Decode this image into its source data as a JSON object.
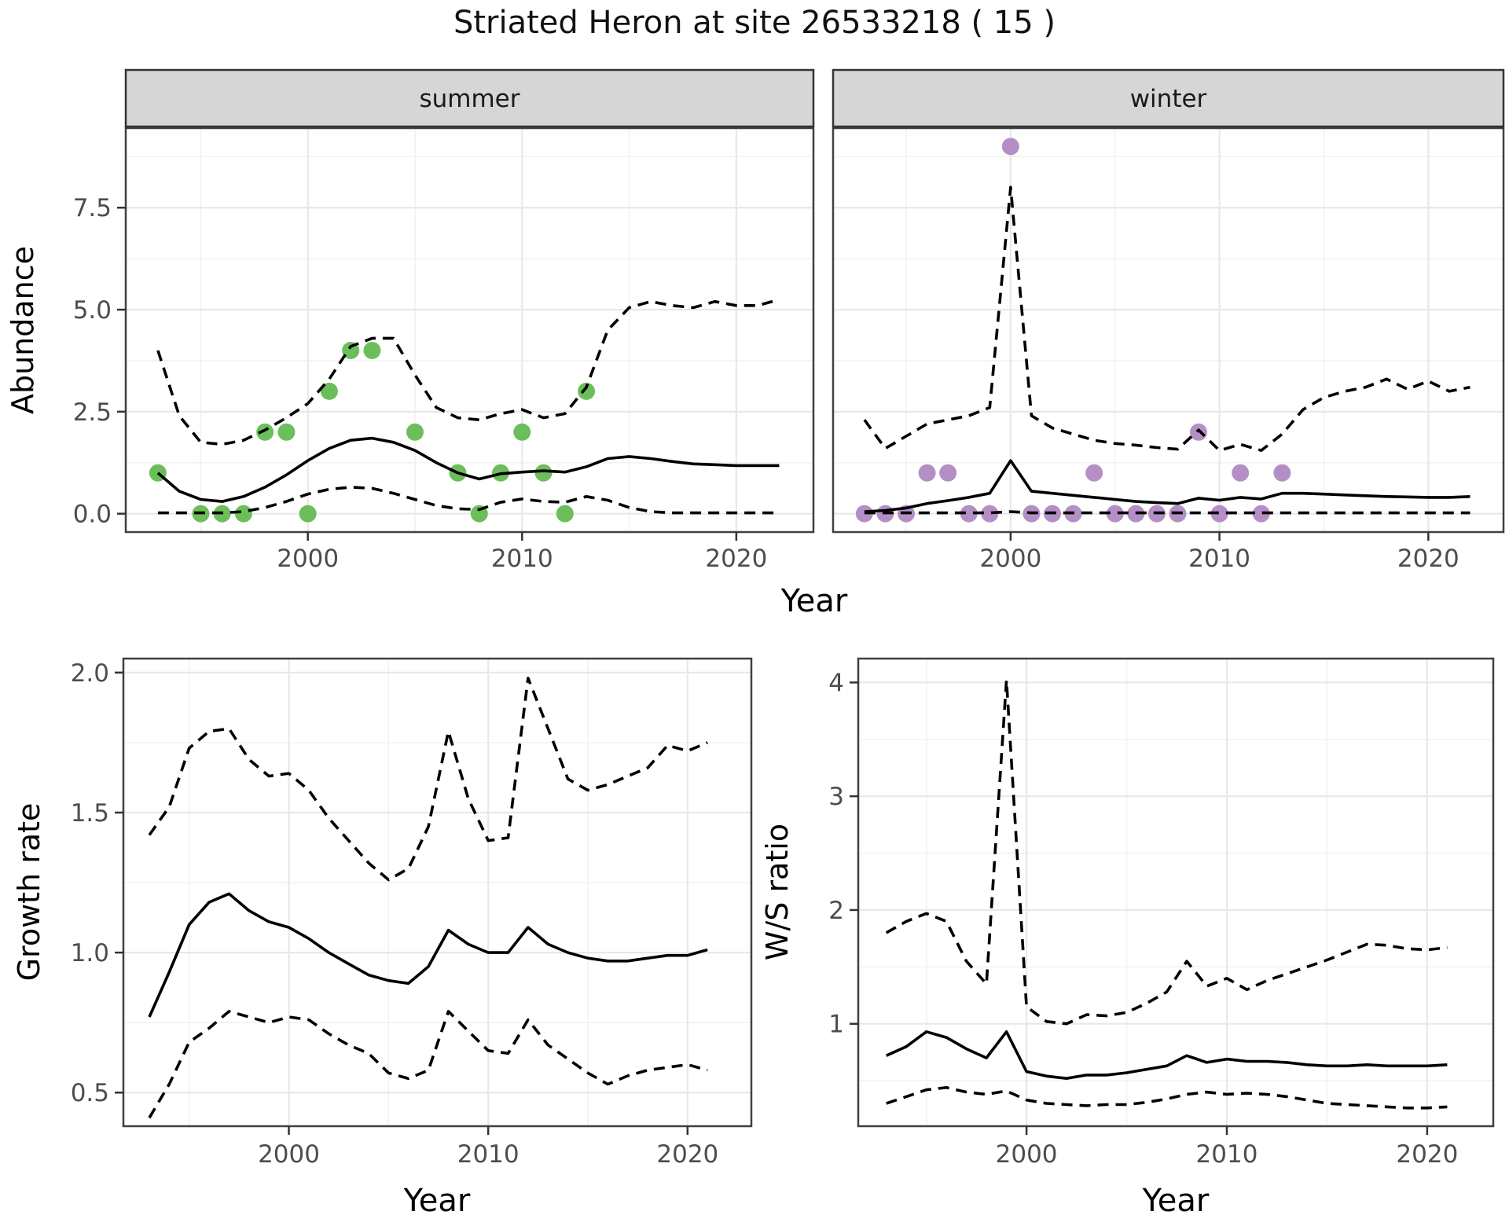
{
  "title": "Striated Heron at site 26533218 ( 15 )",
  "colors": {
    "summer_point": "#6cbe5b",
    "winter_point": "#b48fc6",
    "line": "#000000",
    "grid_major": "#e8e8e8",
    "grid_minor": "#f2f2f2",
    "strip_fill": "#d6d6d6",
    "strip_border": "#333333",
    "panel_border": "#404040",
    "tick_mark": "#333333",
    "tick_text": "#4d4d4d",
    "title_text": "#111111"
  },
  "top_row_xlabel": "Year",
  "chart_data": [
    {
      "id": "abundance_summer",
      "type": "line",
      "facet_label": "summer",
      "ylabel": "Abundance",
      "xlabel": "",
      "xlim": [
        1991.5,
        2023.6
      ],
      "ylim": [
        -0.45,
        9.45
      ],
      "x_ticks": [
        2000,
        2010,
        2020
      ],
      "x_tick_labels": [
        "2000",
        "2010",
        "2020"
      ],
      "x_minor": [
        1995,
        2005,
        2015
      ],
      "y_ticks": [
        0,
        2.5,
        5,
        7.5
      ],
      "y_tick_labels": [
        "0.0",
        "2.5",
        "5.0",
        "7.5"
      ],
      "y_minor": [
        1.25,
        3.75,
        6.25,
        8.75
      ],
      "series": [
        {
          "name": "mean",
          "style": "solid",
          "x": [
            1993,
            1994,
            1995,
            1996,
            1997,
            1998,
            1999,
            2000,
            2001,
            2002,
            2003,
            2004,
            2005,
            2006,
            2007,
            2008,
            2009,
            2010,
            2011,
            2012,
            2013,
            2014,
            2015,
            2016,
            2017,
            2018,
            2019,
            2020,
            2021,
            2022
          ],
          "y": [
            1.0,
            0.55,
            0.35,
            0.3,
            0.42,
            0.65,
            0.95,
            1.3,
            1.6,
            1.8,
            1.85,
            1.75,
            1.55,
            1.25,
            1.0,
            0.85,
            0.98,
            1.02,
            1.05,
            1.02,
            1.15,
            1.35,
            1.4,
            1.35,
            1.28,
            1.22,
            1.2,
            1.18,
            1.18,
            1.18
          ]
        },
        {
          "name": "upper95",
          "style": "dashed",
          "x": [
            1993,
            1994,
            1995,
            1996,
            1997,
            1998,
            1999,
            2000,
            2001,
            2002,
            2003,
            2004,
            2005,
            2006,
            2007,
            2008,
            2009,
            2010,
            2011,
            2012,
            2013,
            2014,
            2015,
            2016,
            2017,
            2018,
            2019,
            2020,
            2021,
            2022
          ],
          "y": [
            4.0,
            2.4,
            1.75,
            1.7,
            1.8,
            2.05,
            2.35,
            2.7,
            3.3,
            4.1,
            4.3,
            4.3,
            3.4,
            2.6,
            2.35,
            2.3,
            2.45,
            2.55,
            2.35,
            2.45,
            3.1,
            4.5,
            5.05,
            5.2,
            5.1,
            5.05,
            5.2,
            5.1,
            5.1,
            5.25
          ]
        },
        {
          "name": "lower95",
          "style": "dashed",
          "x": [
            1993,
            1994,
            1995,
            1996,
            1997,
            1998,
            1999,
            2000,
            2001,
            2002,
            2003,
            2004,
            2005,
            2006,
            2007,
            2008,
            2009,
            2010,
            2011,
            2012,
            2013,
            2014,
            2015,
            2016,
            2017,
            2018,
            2019,
            2020,
            2021,
            2022
          ],
          "y": [
            0.02,
            0.02,
            0.02,
            0.02,
            0.05,
            0.15,
            0.3,
            0.48,
            0.6,
            0.65,
            0.62,
            0.5,
            0.35,
            0.2,
            0.12,
            0.1,
            0.28,
            0.36,
            0.3,
            0.28,
            0.42,
            0.33,
            0.15,
            0.05,
            0.02,
            0.02,
            0.02,
            0.02,
            0.02,
            0.02
          ]
        }
      ],
      "points": {
        "name": "observed-counts",
        "color_key": "summer_point",
        "x": [
          1993,
          1995,
          1996,
          1997,
          1998,
          1999,
          2000,
          2001,
          2002,
          2003,
          2005,
          2007,
          2008,
          2009,
          2010,
          2011,
          2012,
          2013
        ],
        "y": [
          1,
          0,
          0,
          0,
          2,
          2,
          0,
          3,
          4,
          4,
          2,
          1,
          0,
          1,
          2,
          1,
          0,
          3
        ]
      }
    },
    {
      "id": "abundance_winter",
      "type": "line",
      "facet_label": "winter",
      "ylabel": "",
      "xlabel": "",
      "xlim": [
        1991.5,
        2023.6
      ],
      "ylim": [
        -0.45,
        9.45
      ],
      "x_ticks": [
        2000,
        2010,
        2020
      ],
      "x_tick_labels": [
        "2000",
        "2010",
        "2020"
      ],
      "x_minor": [
        1995,
        2005,
        2015
      ],
      "y_ticks": [
        0,
        2.5,
        5,
        7.5
      ],
      "y_tick_labels": [],
      "y_minor": [
        1.25,
        3.75,
        6.25,
        8.75
      ],
      "series": [
        {
          "name": "mean",
          "style": "solid",
          "x": [
            1993,
            1994,
            1995,
            1996,
            1997,
            1998,
            1999,
            2000,
            2001,
            2002,
            2003,
            2004,
            2005,
            2006,
            2007,
            2008,
            2009,
            2010,
            2011,
            2012,
            2013,
            2014,
            2015,
            2016,
            2017,
            2018,
            2019,
            2020,
            2021,
            2022
          ],
          "y": [
            0.05,
            0.08,
            0.14,
            0.25,
            0.32,
            0.4,
            0.5,
            1.3,
            0.55,
            0.5,
            0.45,
            0.4,
            0.35,
            0.3,
            0.27,
            0.25,
            0.38,
            0.33,
            0.4,
            0.36,
            0.5,
            0.5,
            0.48,
            0.46,
            0.44,
            0.42,
            0.41,
            0.4,
            0.4,
            0.42
          ]
        },
        {
          "name": "upper95",
          "style": "dashed",
          "x": [
            1993,
            1994,
            1995,
            1996,
            1997,
            1998,
            1999,
            2000,
            2001,
            2002,
            2003,
            2004,
            2005,
            2006,
            2007,
            2008,
            2009,
            2010,
            2011,
            2012,
            2013,
            2014,
            2015,
            2016,
            2017,
            2018,
            2019,
            2020,
            2021,
            2022
          ],
          "y": [
            2.3,
            1.6,
            1.9,
            2.2,
            2.3,
            2.4,
            2.6,
            8.0,
            2.4,
            2.1,
            1.95,
            1.8,
            1.72,
            1.68,
            1.62,
            1.58,
            2.05,
            1.55,
            1.7,
            1.55,
            1.95,
            2.55,
            2.85,
            3.0,
            3.1,
            3.3,
            3.05,
            3.25,
            3.0,
            3.1
          ]
        },
        {
          "name": "lower95",
          "style": "dashed",
          "x": [
            1993,
            1994,
            1995,
            1996,
            1997,
            1998,
            1999,
            2000,
            2001,
            2002,
            2003,
            2004,
            2005,
            2006,
            2007,
            2008,
            2009,
            2010,
            2011,
            2012,
            2013,
            2014,
            2015,
            2016,
            2017,
            2018,
            2019,
            2020,
            2021,
            2022
          ],
          "y": [
            0.02,
            0.02,
            0.02,
            0.02,
            0.02,
            0.02,
            0.02,
            0.05,
            0.02,
            0.02,
            0.02,
            0.02,
            0.02,
            0.02,
            0.02,
            0.02,
            0.02,
            0.02,
            0.02,
            0.02,
            0.02,
            0.02,
            0.02,
            0.02,
            0.02,
            0.02,
            0.02,
            0.02,
            0.02,
            0.02
          ]
        }
      ],
      "points": {
        "name": "observed-counts",
        "color_key": "winter_point",
        "x": [
          1993,
          1994,
          1995,
          1996,
          1997,
          1998,
          1999,
          2000,
          2001,
          2002,
          2003,
          2004,
          2005,
          2006,
          2007,
          2008,
          2009,
          2010,
          2011,
          2012,
          2013
        ],
        "y": [
          0,
          0,
          0,
          1,
          1,
          0,
          0,
          9,
          0,
          0,
          0,
          1,
          0,
          0,
          0,
          0,
          2,
          0,
          1,
          0,
          1
        ]
      }
    },
    {
      "id": "growth_rate",
      "type": "line",
      "facet_label": "",
      "ylabel": "Growth rate",
      "xlabel": "Year",
      "xlim": [
        1991.7,
        2023.2
      ],
      "ylim": [
        0.38,
        2.05
      ],
      "x_ticks": [
        2000,
        2010,
        2020
      ],
      "x_tick_labels": [
        "2000",
        "2010",
        "2020"
      ],
      "x_minor": [
        1995,
        2005,
        2015
      ],
      "y_ticks": [
        0.5,
        1.0,
        1.5,
        2.0
      ],
      "y_tick_labels": [
        "0.5",
        "1.0",
        "1.5",
        "2.0"
      ],
      "y_minor": [
        0.75,
        1.25,
        1.75
      ],
      "series": [
        {
          "name": "mean",
          "style": "solid",
          "x": [
            1993,
            1994,
            1995,
            1996,
            1997,
            1998,
            1999,
            2000,
            2001,
            2002,
            2003,
            2004,
            2005,
            2006,
            2007,
            2008,
            2009,
            2010,
            2011,
            2012,
            2013,
            2014,
            2015,
            2016,
            2017,
            2018,
            2019,
            2020,
            2021
          ],
          "y": [
            0.77,
            0.93,
            1.1,
            1.18,
            1.21,
            1.15,
            1.11,
            1.09,
            1.05,
            1.0,
            0.96,
            0.92,
            0.9,
            0.89,
            0.95,
            1.08,
            1.03,
            1.0,
            1.0,
            1.09,
            1.03,
            1.0,
            0.98,
            0.97,
            0.97,
            0.98,
            0.99,
            0.99,
            1.01
          ]
        },
        {
          "name": "upper95",
          "style": "dashed",
          "x": [
            1993,
            1994,
            1995,
            1996,
            1997,
            1998,
            1999,
            2000,
            2001,
            2002,
            2003,
            2004,
            2005,
            2006,
            2007,
            2008,
            2009,
            2010,
            2011,
            2012,
            2013,
            2014,
            2015,
            2016,
            2017,
            2018,
            2019,
            2020,
            2021
          ],
          "y": [
            1.42,
            1.52,
            1.73,
            1.79,
            1.8,
            1.69,
            1.63,
            1.64,
            1.58,
            1.48,
            1.4,
            1.32,
            1.26,
            1.3,
            1.45,
            1.79,
            1.55,
            1.4,
            1.41,
            1.98,
            1.8,
            1.62,
            1.58,
            1.6,
            1.63,
            1.66,
            1.74,
            1.72,
            1.75
          ]
        },
        {
          "name": "lower95",
          "style": "dashed",
          "x": [
            1993,
            1994,
            1995,
            1996,
            1997,
            1998,
            1999,
            2000,
            2001,
            2002,
            2003,
            2004,
            2005,
            2006,
            2007,
            2008,
            2009,
            2010,
            2011,
            2012,
            2013,
            2014,
            2015,
            2016,
            2017,
            2018,
            2019,
            2020,
            2021
          ],
          "y": [
            0.41,
            0.53,
            0.68,
            0.73,
            0.79,
            0.77,
            0.75,
            0.77,
            0.76,
            0.71,
            0.67,
            0.64,
            0.57,
            0.55,
            0.58,
            0.79,
            0.72,
            0.65,
            0.64,
            0.76,
            0.67,
            0.62,
            0.57,
            0.53,
            0.56,
            0.58,
            0.59,
            0.6,
            0.58
          ]
        }
      ],
      "points": null
    },
    {
      "id": "ws_ratio",
      "type": "line",
      "facet_label": "",
      "ylabel": "W/S ratio",
      "xlabel": "Year",
      "xlim": [
        1991.6,
        2023.3
      ],
      "ylim": [
        0.1,
        4.21
      ],
      "x_ticks": [
        2000,
        2010,
        2020
      ],
      "x_tick_labels": [
        "2000",
        "2010",
        "2020"
      ],
      "x_minor": [
        1995,
        2005,
        2015
      ],
      "y_ticks": [
        1,
        2,
        3,
        4
      ],
      "y_tick_labels": [
        "1",
        "2",
        "3",
        "4"
      ],
      "y_minor": [
        0.5,
        1.5,
        2.5,
        3.5
      ],
      "series": [
        {
          "name": "mean",
          "style": "solid",
          "x": [
            1993,
            1994,
            1995,
            1996,
            1997,
            1998,
            1999,
            2000,
            2001,
            2002,
            2003,
            2004,
            2005,
            2006,
            2007,
            2008,
            2009,
            2010,
            2011,
            2012,
            2013,
            2014,
            2015,
            2016,
            2017,
            2018,
            2019,
            2020,
            2021
          ],
          "y": [
            0.72,
            0.8,
            0.93,
            0.88,
            0.78,
            0.7,
            0.93,
            0.58,
            0.54,
            0.52,
            0.55,
            0.55,
            0.57,
            0.6,
            0.63,
            0.72,
            0.66,
            0.69,
            0.67,
            0.67,
            0.66,
            0.64,
            0.63,
            0.63,
            0.64,
            0.63,
            0.63,
            0.63,
            0.64
          ]
        },
        {
          "name": "upper95",
          "style": "dashed",
          "x": [
            1993,
            1994,
            1995,
            1996,
            1997,
            1998,
            1999,
            2000,
            2001,
            2002,
            2003,
            2004,
            2005,
            2006,
            2007,
            2008,
            2009,
            2010,
            2011,
            2012,
            2013,
            2014,
            2015,
            2016,
            2017,
            2018,
            2019,
            2020,
            2021
          ],
          "y": [
            1.8,
            1.9,
            1.97,
            1.9,
            1.55,
            1.35,
            4.02,
            1.15,
            1.02,
            1.0,
            1.08,
            1.07,
            1.1,
            1.18,
            1.28,
            1.55,
            1.33,
            1.4,
            1.3,
            1.38,
            1.44,
            1.5,
            1.56,
            1.63,
            1.7,
            1.69,
            1.66,
            1.65,
            1.67
          ]
        },
        {
          "name": "lower95",
          "style": "dashed",
          "x": [
            1993,
            1994,
            1995,
            1996,
            1997,
            1998,
            1999,
            2000,
            2001,
            2002,
            2003,
            2004,
            2005,
            2006,
            2007,
            2008,
            2009,
            2010,
            2011,
            2012,
            2013,
            2014,
            2015,
            2016,
            2017,
            2018,
            2019,
            2020,
            2021
          ],
          "y": [
            0.3,
            0.36,
            0.42,
            0.44,
            0.4,
            0.38,
            0.41,
            0.33,
            0.3,
            0.29,
            0.28,
            0.29,
            0.29,
            0.31,
            0.34,
            0.38,
            0.4,
            0.38,
            0.39,
            0.38,
            0.36,
            0.33,
            0.3,
            0.29,
            0.28,
            0.27,
            0.26,
            0.26,
            0.27
          ]
        }
      ],
      "points": null
    }
  ]
}
